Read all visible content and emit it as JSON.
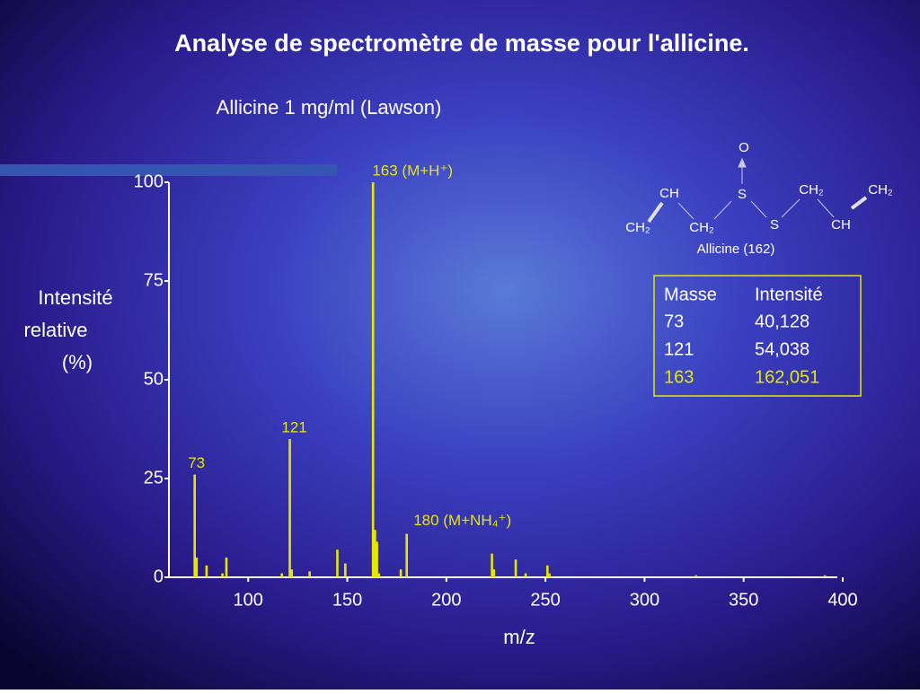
{
  "chart_data": {
    "type": "bar",
    "title": "Analyse de spectromètre de masse pour l'allicine.",
    "subtitle": "Allicine 1 mg/ml (Lawson)",
    "y_label": [
      "Intensité",
      "relative",
      "(%)"
    ],
    "x_label": "m/z",
    "xlim": [
      60,
      400
    ],
    "xticks": [
      100,
      150,
      200,
      250,
      300,
      350,
      400
    ],
    "ylim": [
      0,
      100
    ],
    "yticks": [
      0,
      25,
      50,
      75,
      100
    ],
    "series": [
      {
        "color": "#e6e600",
        "x": [
          73,
          74,
          79,
          87,
          89,
          117,
          121,
          122,
          131,
          145,
          149,
          163,
          164,
          165,
          166,
          177,
          180,
          223,
          224,
          235,
          240,
          251,
          252,
          326,
          391
        ],
        "values": [
          26,
          5,
          3,
          1,
          5,
          1,
          35,
          2,
          1.5,
          7,
          3.5,
          100,
          12,
          9,
          1,
          2,
          11,
          6,
          2,
          4.5,
          1,
          3,
          1,
          0.5,
          0.5
        ]
      }
    ],
    "annotations": [
      "73",
      "121",
      "163 (M+H⁺)",
      "180 (M+NH₄⁺)"
    ]
  },
  "molecule": {
    "atoms": [
      "O",
      "CH",
      "S",
      "CH₂",
      "CH₂",
      "CH₂",
      "S",
      "CH",
      "CH₂"
    ],
    "caption": "Allicine   (162)"
  },
  "table": {
    "rows": [
      [
        "Masse",
        "Intensité"
      ],
      [
        "73",
        "40,128"
      ],
      [
        "121",
        "54,038"
      ],
      [
        "163",
        "162,051"
      ]
    ]
  }
}
